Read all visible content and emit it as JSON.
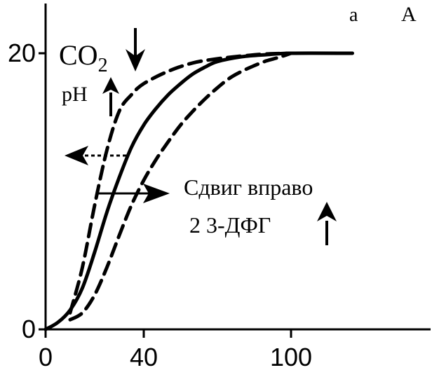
{
  "panel_label": "а",
  "letter": "A",
  "colors": {
    "ink": "#000000",
    "background": "#ffffff"
  },
  "chart_data": {
    "type": "line",
    "title": "",
    "xlabel": "",
    "ylabel": "",
    "xlim": [
      0,
      125
    ],
    "ylim": [
      0,
      21
    ],
    "x_ticks": [
      0,
      40,
      100
    ],
    "x_tick_labels": [
      "0",
      "40",
      "100"
    ],
    "y_ticks": [
      0,
      20
    ],
    "y_tick_labels": [
      "0",
      "20"
    ],
    "grid": false,
    "legend": "none",
    "series": [
      {
        "style": "solid",
        "points": [
          [
            0,
            0
          ],
          [
            5,
            0.5
          ],
          [
            10,
            1.4
          ],
          [
            15,
            3.0
          ],
          [
            20,
            5.6
          ],
          [
            25,
            8.5
          ],
          [
            30,
            11.0
          ],
          [
            35,
            13.2
          ],
          [
            40,
            14.8
          ],
          [
            45,
            16.0
          ],
          [
            50,
            17.0
          ],
          [
            55,
            17.8
          ],
          [
            60,
            18.5
          ],
          [
            65,
            19.0
          ],
          [
            70,
            19.4
          ],
          [
            80,
            19.75
          ],
          [
            90,
            19.9
          ],
          [
            100,
            20
          ],
          [
            125,
            20
          ]
        ]
      },
      {
        "style": "dashed",
        "points": [
          [
            10,
            1.2
          ],
          [
            15,
            4.5
          ],
          [
            20,
            9.0
          ],
          [
            25,
            13.0
          ],
          [
            30,
            15.8
          ],
          [
            35,
            17.0
          ],
          [
            40,
            17.8
          ],
          [
            50,
            18.7
          ],
          [
            60,
            19.3
          ],
          [
            70,
            19.6
          ],
          [
            80,
            19.8
          ],
          [
            90,
            19.95
          ],
          [
            100,
            20
          ]
        ]
      },
      {
        "style": "dashed",
        "points": [
          [
            10,
            0.7
          ],
          [
            15,
            1.2
          ],
          [
            20,
            2.5
          ],
          [
            25,
            4.5
          ],
          [
            30,
            6.8
          ],
          [
            35,
            9.0
          ],
          [
            40,
            10.8
          ],
          [
            45,
            12.3
          ],
          [
            50,
            13.6
          ],
          [
            55,
            14.8
          ],
          [
            60,
            15.8
          ],
          [
            65,
            16.7
          ],
          [
            70,
            17.5
          ],
          [
            75,
            18.2
          ],
          [
            80,
            18.7
          ],
          [
            85,
            19.1
          ],
          [
            90,
            19.45
          ],
          [
            95,
            19.7
          ],
          [
            100,
            20
          ]
        ]
      }
    ],
    "annotations": {
      "co2_text": "CO",
      "co2_subscript": "2",
      "ph_text": "pH",
      "right_shift_text": "Сдвиг вправо",
      "dpg_text": "2 3-ДФГ"
    },
    "arrows": [
      {
        "name": "co2-down-arrow",
        "direction": "down"
      },
      {
        "name": "ph-up-arrow",
        "direction": "up"
      },
      {
        "name": "left-shift-arrow",
        "direction": "left",
        "dashed": true
      },
      {
        "name": "right-shift-arrow",
        "direction": "right",
        "dashed": false
      },
      {
        "name": "dpg-up-arrow",
        "direction": "up"
      }
    ]
  }
}
